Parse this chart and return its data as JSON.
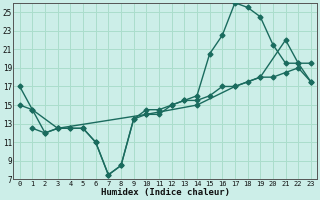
{
  "xlabel": "Humidex (Indice chaleur)",
  "bg_color": "#cceee8",
  "grid_color": "#aaddcc",
  "line_color": "#1a6b5e",
  "xlim": [
    -0.5,
    23.5
  ],
  "ylim": [
    7,
    26
  ],
  "xticks": [
    0,
    1,
    2,
    3,
    4,
    5,
    6,
    7,
    8,
    9,
    10,
    11,
    12,
    13,
    14,
    15,
    16,
    17,
    18,
    19,
    20,
    21,
    22,
    23
  ],
  "yticks": [
    7,
    9,
    11,
    13,
    15,
    17,
    19,
    21,
    23,
    25
  ],
  "curve1_x": [
    0,
    1,
    2,
    3,
    4,
    5,
    6,
    7,
    8,
    9,
    10,
    11,
    12,
    13,
    14,
    15,
    16,
    17,
    18,
    19,
    20,
    21,
    22,
    23
  ],
  "curve1_y": [
    17,
    14.5,
    12,
    12.5,
    12.5,
    12.5,
    11,
    7.5,
    8.5,
    13.5,
    14.5,
    14.5,
    15,
    15.5,
    15.5,
    16,
    17,
    17,
    17.5,
    18,
    18,
    18.5,
    19,
    17.5
  ],
  "curve2_x": [
    1,
    2,
    3,
    4,
    5,
    6,
    7,
    8,
    9,
    10,
    11,
    12,
    13,
    14,
    15,
    16,
    17,
    18,
    19,
    20,
    21,
    22,
    23
  ],
  "curve2_y": [
    12.5,
    12,
    12.5,
    12.5,
    12.5,
    11,
    7.5,
    8.5,
    13.5,
    14,
    14,
    15,
    15.5,
    16,
    20.5,
    22.5,
    26,
    25.5,
    24.5,
    21.5,
    19.5,
    19.5,
    19.5
  ],
  "curve3_x": [
    0,
    1,
    3,
    10,
    14,
    17,
    19,
    21,
    22,
    23
  ],
  "curve3_y": [
    15,
    14.5,
    12.5,
    14,
    15,
    17,
    18,
    22,
    19.5,
    17.5
  ],
  "marker": "D",
  "markersize": 2.5,
  "linewidth": 1.0
}
